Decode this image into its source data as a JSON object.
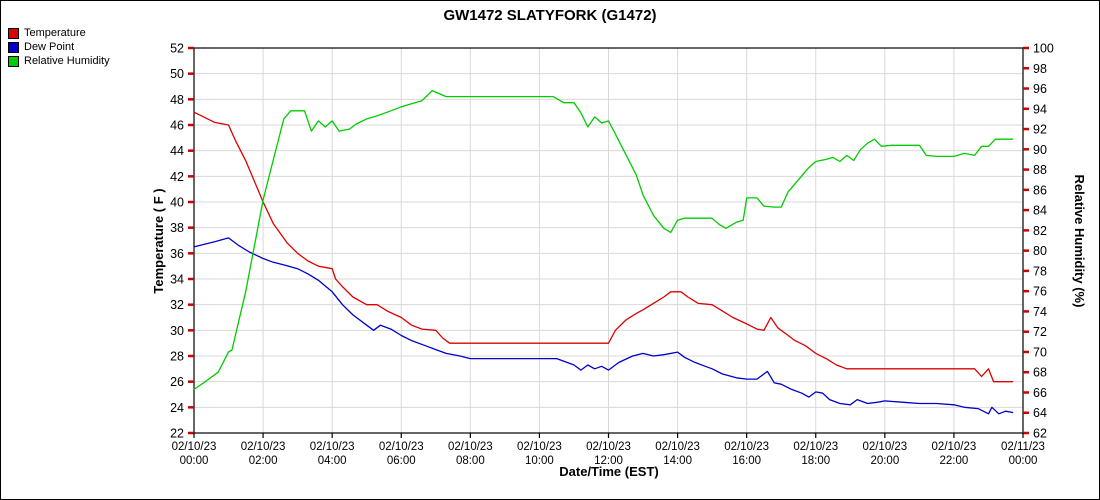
{
  "chart_data": {
    "type": "line",
    "title": "GW1472 SLATYFORK (G1472)",
    "style": {
      "grid_color": "#d9d9d9",
      "y_tick_color": "#cc0000",
      "background": "#ffffff"
    },
    "axes": {
      "left": {
        "title": "Temperature ( F )",
        "min": 22,
        "max": 52,
        "step": 2
      },
      "right": {
        "title": "Relative Humidity (%)",
        "min": 62,
        "max": 100,
        "step": 2
      },
      "x": {
        "title": "Date/Time (EST)",
        "min": 0,
        "max": 24,
        "ticks": [
          {
            "hour": 0,
            "date": "02/10/23",
            "time": "00:00"
          },
          {
            "hour": 2,
            "date": "02/10/23",
            "time": "02:00"
          },
          {
            "hour": 4,
            "date": "02/10/23",
            "time": "04:00"
          },
          {
            "hour": 6,
            "date": "02/10/23",
            "time": "06:00"
          },
          {
            "hour": 8,
            "date": "02/10/23",
            "time": "08:00"
          },
          {
            "hour": 10,
            "date": "02/10/23",
            "time": "10:00"
          },
          {
            "hour": 12,
            "date": "02/10/23",
            "time": "12:00"
          },
          {
            "hour": 14,
            "date": "02/10/23",
            "time": "14:00"
          },
          {
            "hour": 16,
            "date": "02/10/23",
            "time": "16:00"
          },
          {
            "hour": 18,
            "date": "02/10/23",
            "time": "18:00"
          },
          {
            "hour": 20,
            "date": "02/10/23",
            "time": "20:00"
          },
          {
            "hour": 22,
            "date": "02/10/23",
            "time": "22:00"
          },
          {
            "hour": 24,
            "date": "02/11/23",
            "time": "00:00"
          }
        ]
      }
    },
    "series": [
      {
        "name": "Temperature",
        "axis": "left",
        "color": "#dd0000",
        "points": [
          [
            0,
            47
          ],
          [
            0.3,
            46.6
          ],
          [
            0.6,
            46.2
          ],
          [
            1.0,
            46.0
          ],
          [
            1.2,
            44.8
          ],
          [
            1.5,
            43.2
          ],
          [
            2.0,
            40.0
          ],
          [
            2.3,
            38.3
          ],
          [
            2.7,
            36.8
          ],
          [
            3.0,
            36.0
          ],
          [
            3.3,
            35.4
          ],
          [
            3.6,
            35.0
          ],
          [
            4.0,
            34.8
          ],
          [
            4.1,
            34.0
          ],
          [
            4.3,
            33.4
          ],
          [
            4.6,
            32.6
          ],
          [
            5.0,
            32.0
          ],
          [
            5.3,
            32.0
          ],
          [
            5.6,
            31.5
          ],
          [
            6.0,
            31.0
          ],
          [
            6.3,
            30.4
          ],
          [
            6.6,
            30.1
          ],
          [
            7.0,
            30.0
          ],
          [
            7.2,
            29.4
          ],
          [
            7.4,
            29.0
          ],
          [
            8.0,
            29.0
          ],
          [
            9.0,
            29.0
          ],
          [
            10.0,
            29.0
          ],
          [
            11.0,
            29.0
          ],
          [
            12.0,
            29.0
          ],
          [
            12.2,
            30.0
          ],
          [
            12.5,
            30.8
          ],
          [
            12.8,
            31.3
          ],
          [
            13.0,
            31.6
          ],
          [
            13.3,
            32.1
          ],
          [
            13.6,
            32.6
          ],
          [
            13.8,
            33.0
          ],
          [
            14.1,
            33.0
          ],
          [
            14.3,
            32.6
          ],
          [
            14.6,
            32.1
          ],
          [
            15.0,
            32.0
          ],
          [
            15.3,
            31.5
          ],
          [
            15.6,
            31.0
          ],
          [
            16.0,
            30.5
          ],
          [
            16.3,
            30.1
          ],
          [
            16.5,
            30.0
          ],
          [
            16.7,
            31.0
          ],
          [
            16.9,
            30.2
          ],
          [
            17.1,
            29.8
          ],
          [
            17.4,
            29.2
          ],
          [
            17.7,
            28.8
          ],
          [
            18.0,
            28.2
          ],
          [
            18.3,
            27.8
          ],
          [
            18.6,
            27.3
          ],
          [
            18.9,
            27.0
          ],
          [
            19.5,
            27.0
          ],
          [
            20.0,
            27.0
          ],
          [
            21.0,
            27.0
          ],
          [
            22.0,
            27.0
          ],
          [
            22.6,
            27.0
          ],
          [
            22.8,
            26.4
          ],
          [
            23.0,
            27.0
          ],
          [
            23.15,
            26.0
          ],
          [
            23.3,
            26.0
          ],
          [
            23.5,
            26.0
          ],
          [
            23.7,
            26.0
          ]
        ]
      },
      {
        "name": "Dew Point",
        "axis": "left",
        "color": "#0000cc",
        "points": [
          [
            0,
            36.5
          ],
          [
            0.3,
            36.7
          ],
          [
            0.6,
            36.9
          ],
          [
            1.0,
            37.2
          ],
          [
            1.3,
            36.6
          ],
          [
            1.6,
            36.1
          ],
          [
            2.0,
            35.6
          ],
          [
            2.3,
            35.3
          ],
          [
            2.6,
            35.1
          ],
          [
            3.0,
            34.8
          ],
          [
            3.3,
            34.4
          ],
          [
            3.6,
            33.9
          ],
          [
            4.0,
            33.0
          ],
          [
            4.3,
            32.0
          ],
          [
            4.6,
            31.2
          ],
          [
            5.0,
            30.4
          ],
          [
            5.2,
            30.0
          ],
          [
            5.4,
            30.4
          ],
          [
            5.7,
            30.1
          ],
          [
            6.0,
            29.6
          ],
          [
            6.3,
            29.2
          ],
          [
            6.7,
            28.8
          ],
          [
            7.0,
            28.5
          ],
          [
            7.3,
            28.2
          ],
          [
            7.7,
            28.0
          ],
          [
            8.0,
            27.8
          ],
          [
            9.0,
            27.8
          ],
          [
            10.0,
            27.8
          ],
          [
            10.5,
            27.8
          ],
          [
            10.8,
            27.5
          ],
          [
            11.0,
            27.3
          ],
          [
            11.2,
            26.9
          ],
          [
            11.4,
            27.3
          ],
          [
            11.6,
            27.0
          ],
          [
            11.8,
            27.2
          ],
          [
            12.0,
            26.9
          ],
          [
            12.3,
            27.5
          ],
          [
            12.7,
            28.0
          ],
          [
            13.0,
            28.2
          ],
          [
            13.3,
            28.0
          ],
          [
            13.6,
            28.1
          ],
          [
            14.0,
            28.3
          ],
          [
            14.2,
            27.9
          ],
          [
            14.5,
            27.5
          ],
          [
            14.8,
            27.2
          ],
          [
            15.0,
            27.0
          ],
          [
            15.3,
            26.6
          ],
          [
            15.7,
            26.3
          ],
          [
            16.0,
            26.2
          ],
          [
            16.3,
            26.2
          ],
          [
            16.6,
            26.8
          ],
          [
            16.8,
            25.9
          ],
          [
            17.0,
            25.8
          ],
          [
            17.3,
            25.4
          ],
          [
            17.6,
            25.1
          ],
          [
            17.8,
            24.8
          ],
          [
            18.0,
            25.2
          ],
          [
            18.2,
            25.1
          ],
          [
            18.4,
            24.6
          ],
          [
            18.7,
            24.3
          ],
          [
            19.0,
            24.2
          ],
          [
            19.2,
            24.6
          ],
          [
            19.5,
            24.3
          ],
          [
            19.8,
            24.4
          ],
          [
            20.0,
            24.5
          ],
          [
            20.5,
            24.4
          ],
          [
            21.0,
            24.3
          ],
          [
            21.5,
            24.3
          ],
          [
            22.0,
            24.2
          ],
          [
            22.3,
            24.0
          ],
          [
            22.7,
            23.9
          ],
          [
            23.0,
            23.5
          ],
          [
            23.1,
            24.0
          ],
          [
            23.3,
            23.5
          ],
          [
            23.5,
            23.7
          ],
          [
            23.7,
            23.6
          ]
        ]
      },
      {
        "name": "Relative Humidity",
        "axis": "right",
        "color": "#00cc00",
        "points": [
          [
            0,
            66.3
          ],
          [
            0.3,
            67.0
          ],
          [
            0.7,
            68.0
          ],
          [
            1.0,
            70.0
          ],
          [
            1.1,
            70.2
          ],
          [
            1.5,
            76.0
          ],
          [
            2.0,
            85.0
          ],
          [
            2.3,
            89.0
          ],
          [
            2.6,
            93.0
          ],
          [
            2.8,
            93.8
          ],
          [
            3.2,
            93.8
          ],
          [
            3.4,
            91.8
          ],
          [
            3.6,
            92.8
          ],
          [
            3.8,
            92.2
          ],
          [
            4.0,
            92.8
          ],
          [
            4.2,
            91.8
          ],
          [
            4.5,
            92.0
          ],
          [
            4.7,
            92.5
          ],
          [
            5.0,
            93.0
          ],
          [
            5.3,
            93.3
          ],
          [
            5.7,
            93.8
          ],
          [
            6.0,
            94.2
          ],
          [
            6.3,
            94.5
          ],
          [
            6.6,
            94.8
          ],
          [
            6.9,
            95.8
          ],
          [
            7.1,
            95.5
          ],
          [
            7.3,
            95.2
          ],
          [
            7.7,
            95.2
          ],
          [
            8.5,
            95.2
          ],
          [
            9.5,
            95.2
          ],
          [
            10.4,
            95.2
          ],
          [
            10.7,
            94.6
          ],
          [
            11.0,
            94.6
          ],
          [
            11.2,
            93.6
          ],
          [
            11.4,
            92.2
          ],
          [
            11.6,
            93.2
          ],
          [
            11.8,
            92.6
          ],
          [
            12.0,
            92.8
          ],
          [
            12.2,
            91.5
          ],
          [
            12.5,
            89.5
          ],
          [
            12.8,
            87.5
          ],
          [
            13.0,
            85.5
          ],
          [
            13.3,
            83.5
          ],
          [
            13.6,
            82.2
          ],
          [
            13.8,
            81.8
          ],
          [
            14.0,
            83.0
          ],
          [
            14.2,
            83.2
          ],
          [
            14.5,
            83.2
          ],
          [
            15.0,
            83.2
          ],
          [
            15.2,
            82.6
          ],
          [
            15.4,
            82.2
          ],
          [
            15.7,
            82.8
          ],
          [
            15.9,
            83.0
          ],
          [
            16.0,
            85.2
          ],
          [
            16.3,
            85.2
          ],
          [
            16.5,
            84.4
          ],
          [
            16.8,
            84.3
          ],
          [
            17.0,
            84.3
          ],
          [
            17.2,
            85.8
          ],
          [
            17.5,
            87.0
          ],
          [
            17.8,
            88.2
          ],
          [
            18.0,
            88.8
          ],
          [
            18.3,
            89.0
          ],
          [
            18.5,
            89.2
          ],
          [
            18.7,
            88.8
          ],
          [
            18.9,
            89.4
          ],
          [
            19.1,
            88.9
          ],
          [
            19.3,
            90.0
          ],
          [
            19.5,
            90.6
          ],
          [
            19.7,
            91.0
          ],
          [
            19.9,
            90.3
          ],
          [
            20.2,
            90.4
          ],
          [
            20.5,
            90.4
          ],
          [
            21.0,
            90.4
          ],
          [
            21.2,
            89.4
          ],
          [
            21.5,
            89.3
          ],
          [
            22.0,
            89.3
          ],
          [
            22.3,
            89.6
          ],
          [
            22.6,
            89.4
          ],
          [
            22.8,
            90.3
          ],
          [
            23.0,
            90.3
          ],
          [
            23.2,
            91.0
          ],
          [
            23.5,
            91.0
          ],
          [
            23.7,
            91.0
          ]
        ]
      }
    ]
  }
}
